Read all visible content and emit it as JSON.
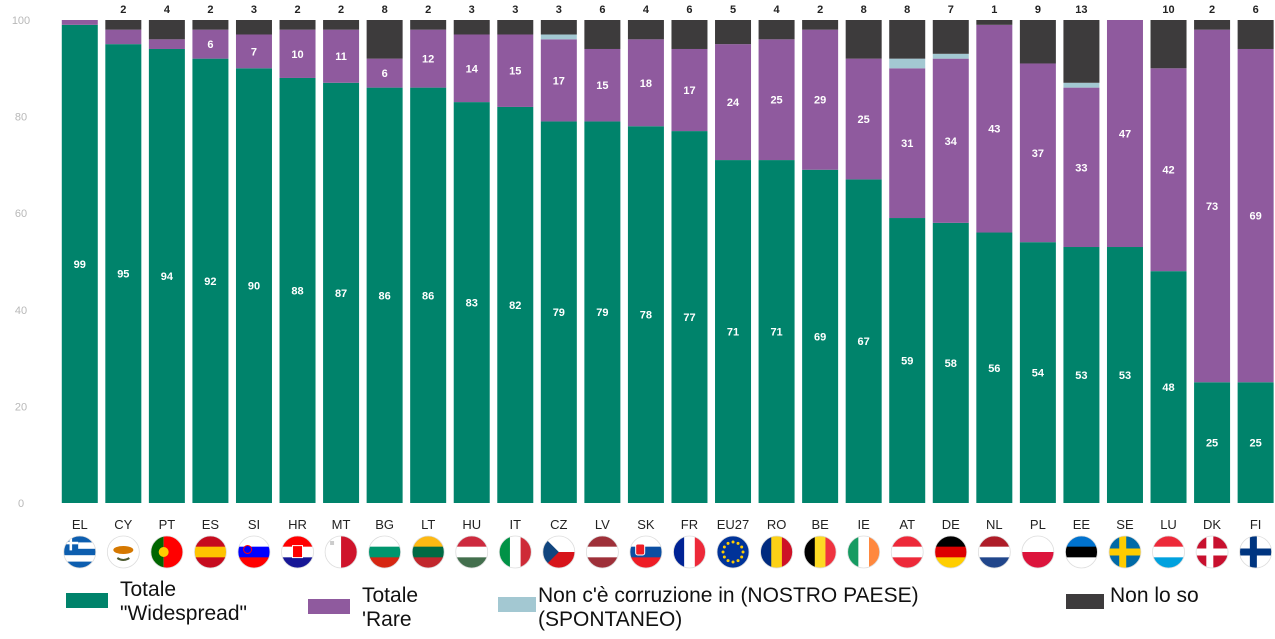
{
  "chart_data": {
    "type": "bar",
    "stacked": true,
    "categories": [
      "EL",
      "CY",
      "PT",
      "ES",
      "SI",
      "HR",
      "MT",
      "BG",
      "LT",
      "HU",
      "IT",
      "CZ",
      "LV",
      "SK",
      "FR",
      "EU27",
      "RO",
      "BE",
      "IE",
      "AT",
      "DE",
      "NL",
      "PL",
      "EE",
      "SE",
      "LU",
      "DK",
      "FI"
    ],
    "ylim": [
      0,
      100
    ],
    "yticks": [
      0,
      20,
      40,
      60,
      80,
      100
    ],
    "grid": false,
    "legend_position": "bottom",
    "series": [
      {
        "name": "Totale \"Widespread\"",
        "legend_label": "Totale\n\"Widespread\"",
        "color": "#00836b",
        "values": [
          99,
          95,
          94,
          92,
          90,
          88,
          87,
          86,
          86,
          83,
          82,
          79,
          79,
          78,
          77,
          71,
          71,
          69,
          67,
          59,
          58,
          56,
          54,
          53,
          53,
          48,
          25,
          25
        ],
        "labels": [
          "99",
          "95",
          "94",
          "92",
          "90",
          "88",
          "87",
          "86",
          "86",
          "83",
          "82",
          "79",
          "79",
          "78",
          "77",
          "71",
          "71",
          "69",
          "67",
          "59",
          "58",
          "56",
          "54",
          "53",
          "53",
          "48",
          "25",
          "25"
        ]
      },
      {
        "name": "Totale 'Rare",
        "legend_label": "Totale\n'Rare",
        "color": "#8f5a9e",
        "values": [
          1,
          3,
          2,
          6,
          7,
          10,
          11,
          6,
          12,
          14,
          15,
          17,
          15,
          18,
          17,
          24,
          25,
          29,
          25,
          31,
          34,
          43,
          37,
          33,
          47,
          42,
          73,
          69
        ],
        "labels": [
          "",
          "",
          "",
          "6",
          "7",
          "10",
          "11",
          "6",
          "12",
          "14",
          "15",
          "17",
          "15",
          "18",
          "17",
          "24",
          "25",
          "29",
          "25",
          "31",
          "34",
          "43",
          "37",
          "33",
          "47",
          "42",
          "73",
          "69"
        ]
      },
      {
        "name": "Non c'è corruzione in (NOSTRO PAESE) (SPONTANEO)",
        "legend_label": "Non c'è corruzione in (NOSTRO PAESE)\n(SPONTANEO)",
        "color": "#a3c8d2",
        "values": [
          0,
          0,
          0,
          0,
          0,
          0,
          0,
          0,
          0,
          0,
          0,
          1,
          0,
          0,
          0,
          0,
          0,
          0,
          0,
          2,
          1,
          0,
          0,
          1,
          0,
          0,
          0,
          0
        ],
        "labels": [
          "",
          "",
          "",
          "",
          "",
          "",
          "",
          "",
          "",
          "",
          "",
          "",
          "",
          "",
          "",
          "",
          "",
          "",
          "",
          "",
          "",
          "",
          "",
          "",
          "",
          "",
          "",
          ""
        ]
      },
      {
        "name": "Non lo so",
        "legend_label": "Non lo so",
        "color": "#3d3b3c",
        "values": [
          0,
          2,
          4,
          2,
          3,
          2,
          2,
          8,
          2,
          3,
          3,
          3,
          6,
          4,
          6,
          5,
          4,
          2,
          8,
          8,
          7,
          1,
          9,
          13,
          0,
          10,
          2,
          6
        ],
        "labels": [
          "",
          "2",
          "4",
          "2",
          "3",
          "2",
          "2",
          "8",
          "2",
          "3",
          "3",
          "3",
          "6",
          "4",
          "6",
          "5",
          "4",
          "2",
          "8",
          "8",
          "7",
          "1",
          "9",
          "13",
          "",
          "10",
          "2",
          "6"
        ]
      }
    ],
    "flags": [
      {
        "code": "EL",
        "colors": [
          "#0d5eaf",
          "#ffffff",
          "#0d5eaf",
          "#ffffff",
          "#0d5eaf"
        ],
        "style": "h"
      },
      {
        "code": "CY",
        "colors": [
          "#ffffff",
          "#ffffff",
          "#ffffff"
        ],
        "style": "cy"
      },
      {
        "code": "PT",
        "colors": [
          "#006600",
          "#ff0000"
        ],
        "style": "v2"
      },
      {
        "code": "ES",
        "colors": [
          "#c60b1e",
          "#ffc400",
          "#c60b1e"
        ],
        "style": "h"
      },
      {
        "code": "SI",
        "colors": [
          "#ffffff",
          "#0000ff",
          "#ff0000"
        ],
        "style": "h"
      },
      {
        "code": "HR",
        "colors": [
          "#ff0000",
          "#ffffff",
          "#171796"
        ],
        "style": "h"
      },
      {
        "code": "MT",
        "colors": [
          "#ffffff",
          "#cf142b"
        ],
        "style": "v"
      },
      {
        "code": "BG",
        "colors": [
          "#ffffff",
          "#00966e",
          "#d62612"
        ],
        "style": "h"
      },
      {
        "code": "LT",
        "colors": [
          "#fdb913",
          "#006a44",
          "#c1272d"
        ],
        "style": "h"
      },
      {
        "code": "HU",
        "colors": [
          "#cd2a3e",
          "#ffffff",
          "#436f4d"
        ],
        "style": "h"
      },
      {
        "code": "IT",
        "colors": [
          "#009246",
          "#ffffff",
          "#ce2b37"
        ],
        "style": "v"
      },
      {
        "code": "CZ",
        "colors": [
          "#ffffff",
          "#d7141a",
          "#11457e"
        ],
        "style": "cz"
      },
      {
        "code": "LV",
        "colors": [
          "#9e3039",
          "#ffffff",
          "#9e3039"
        ],
        "style": "h"
      },
      {
        "code": "SK",
        "colors": [
          "#ffffff",
          "#0b4ea2",
          "#ee1c25"
        ],
        "style": "h"
      },
      {
        "code": "FR",
        "colors": [
          "#002395",
          "#ffffff",
          "#ed2939"
        ],
        "style": "v"
      },
      {
        "code": "EU27",
        "colors": [
          "#003399"
        ],
        "style": "eu"
      },
      {
        "code": "RO",
        "colors": [
          "#002b7f",
          "#fcd116",
          "#ce1126"
        ],
        "style": "v"
      },
      {
        "code": "BE",
        "colors": [
          "#000000",
          "#fdda24",
          "#ef3340"
        ],
        "style": "v"
      },
      {
        "code": "IE",
        "colors": [
          "#169b62",
          "#ffffff",
          "#ff883e"
        ],
        "style": "v"
      },
      {
        "code": "AT",
        "colors": [
          "#ed2939",
          "#ffffff",
          "#ed2939"
        ],
        "style": "h"
      },
      {
        "code": "DE",
        "colors": [
          "#000000",
          "#dd0000",
          "#ffce00"
        ],
        "style": "h"
      },
      {
        "code": "NL",
        "colors": [
          "#ae1c28",
          "#ffffff",
          "#21468b"
        ],
        "style": "h"
      },
      {
        "code": "PL",
        "colors": [
          "#ffffff",
          "#dc143c"
        ],
        "style": "h"
      },
      {
        "code": "EE",
        "colors": [
          "#0072ce",
          "#000000",
          "#ffffff"
        ],
        "style": "h"
      },
      {
        "code": "SE",
        "colors": [
          "#006aa7",
          "#fecc00"
        ],
        "style": "nordic"
      },
      {
        "code": "LU",
        "colors": [
          "#ed2939",
          "#ffffff",
          "#00a1de"
        ],
        "style": "h"
      },
      {
        "code": "DK",
        "colors": [
          "#c8102e",
          "#ffffff"
        ],
        "style": "nordic"
      },
      {
        "code": "FI",
        "colors": [
          "#ffffff",
          "#003580"
        ],
        "style": "nordic"
      }
    ]
  }
}
